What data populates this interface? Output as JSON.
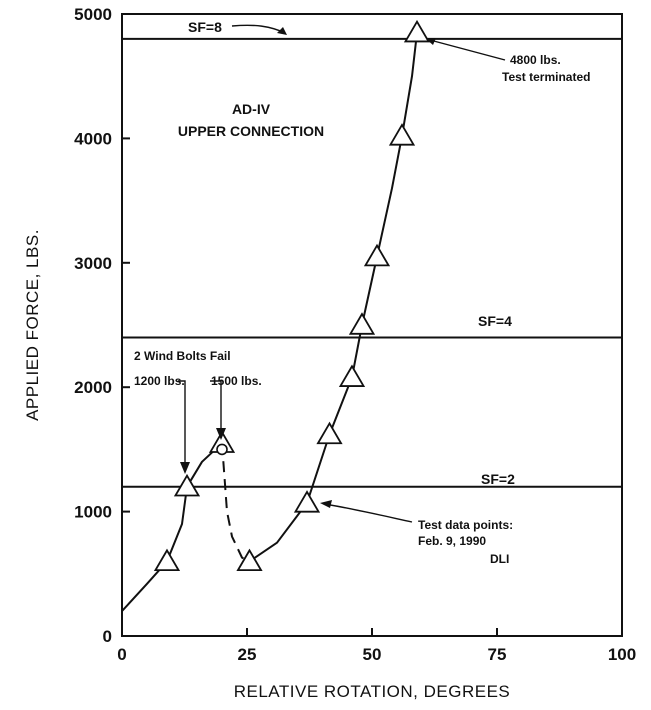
{
  "chart_data": {
    "type": "line",
    "title": "AD-IV\nUPPER CONNECTION",
    "title_lines": [
      "AD-IV",
      "UPPER CONNECTION"
    ],
    "xlabel": "RELATIVE ROTATION, DEGREES",
    "ylabel": "APPLIED FORCE, LBS.",
    "xlim": [
      0,
      100
    ],
    "ylim": [
      0,
      5000
    ],
    "x_ticks": [
      0,
      25,
      50,
      75,
      100
    ],
    "y_ticks": [
      0,
      1000,
      2000,
      3000,
      4000,
      5000
    ],
    "grid": false,
    "legend": "none",
    "series": [
      {
        "name": "Test data points",
        "marker": "triangle",
        "points": [
          {
            "x": 9,
            "y": 600
          },
          {
            "x": 13,
            "y": 1200
          },
          {
            "x": 20,
            "y": 1550
          },
          {
            "x": 25.5,
            "y": 600
          },
          {
            "x": 37,
            "y": 1070
          },
          {
            "x": 41.5,
            "y": 1620
          },
          {
            "x": 46,
            "y": 2080
          },
          {
            "x": 48,
            "y": 2500
          },
          {
            "x": 51,
            "y": 3050
          },
          {
            "x": 56,
            "y": 4020
          },
          {
            "x": 59,
            "y": 4850
          }
        ]
      }
    ],
    "curve_solid_1": [
      [
        0,
        200
      ],
      [
        5,
        420
      ],
      [
        9,
        600
      ],
      [
        12,
        900
      ],
      [
        13,
        1200
      ],
      [
        16,
        1400
      ],
      [
        20,
        1550
      ]
    ],
    "curve_dashed": [
      [
        20,
        1550
      ],
      [
        21,
        1000
      ],
      [
        22,
        800
      ],
      [
        24,
        630
      ],
      [
        25.5,
        600
      ]
    ],
    "curve_solid_2": [
      [
        25.5,
        600
      ],
      [
        31,
        750
      ],
      [
        37,
        1070
      ],
      [
        41.5,
        1620
      ],
      [
        46,
        2080
      ],
      [
        48,
        2500
      ],
      [
        51,
        3050
      ],
      [
        54,
        3600
      ],
      [
        56,
        4020
      ],
      [
        58,
        4500
      ],
      [
        59,
        4850
      ]
    ],
    "open_circle": {
      "x": 20,
      "y": 1500
    },
    "reference_lines": [
      {
        "y": 4800,
        "label": "SF=8"
      },
      {
        "y": 2400,
        "label": "SF=4"
      },
      {
        "y": 1200,
        "label": "SF=2"
      }
    ],
    "annotations": [
      {
        "text": "4800 lbs.",
        "line2": "Test terminated"
      },
      {
        "text": "2 Wind Bolts Fail"
      },
      {
        "text": "1200 lbs."
      },
      {
        "text": "1500 lbs."
      },
      {
        "text": "Test data points:",
        "line2": "Feb. 9, 1990",
        "line3": "DLI"
      }
    ]
  }
}
